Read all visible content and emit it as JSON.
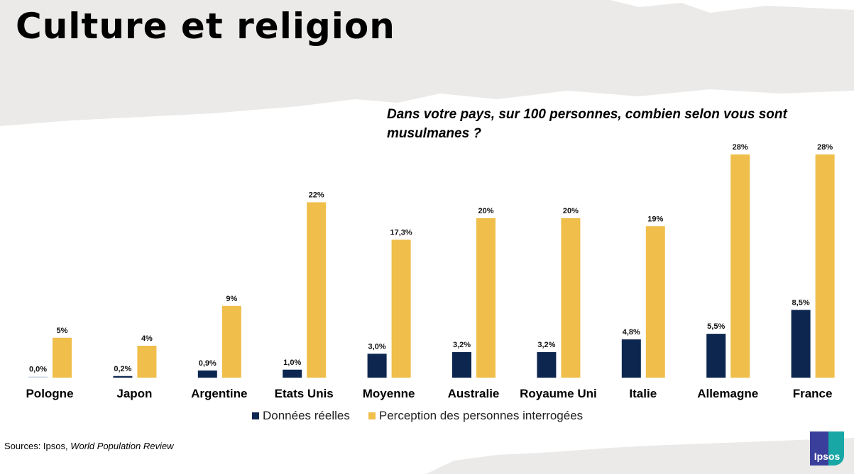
{
  "title": "Culture et religion",
  "question": "Dans votre pays, sur 100 personnes, combien selon vous sont musulmanes ?",
  "source_prefix": "Sources: Ipsos, ",
  "source_italic": "World Population Review",
  "logo_text": "Ipsos",
  "colors": {
    "real": "#0d2650",
    "perceived": "#f0be4a",
    "background_gray": "#ebeae8"
  },
  "chart_data": {
    "type": "bar",
    "title": "Dans votre pays, sur 100 personnes, combien selon vous sont musulmanes ?",
    "categories": [
      "Pologne",
      "Japon",
      "Argentine",
      "Etats Unis",
      "Moyenne",
      "Australie",
      "Royaume Uni",
      "Italie",
      "Allemagne",
      "France"
    ],
    "series": [
      {
        "name": "Données réelles",
        "values": [
          0.0,
          0.2,
          0.9,
          1.0,
          3.0,
          3.2,
          3.2,
          4.8,
          5.5,
          8.5
        ],
        "labels": [
          "0,0%",
          "0,2%",
          "0,9%",
          "1,0%",
          "3,0%",
          "3,2%",
          "3,2%",
          "4,8%",
          "5,5%",
          "8,5%"
        ]
      },
      {
        "name": "Perception des personnes interrogées",
        "values": [
          5,
          4,
          9,
          22,
          17.3,
          20,
          20,
          19,
          28,
          28
        ],
        "labels": [
          "5%",
          "4%",
          "9%",
          "22%",
          "17,3%",
          "20%",
          "20%",
          "19%",
          "28%",
          "28%"
        ]
      }
    ],
    "ylim": [
      0,
      28
    ],
    "legend": "bottom",
    "grid": false
  }
}
